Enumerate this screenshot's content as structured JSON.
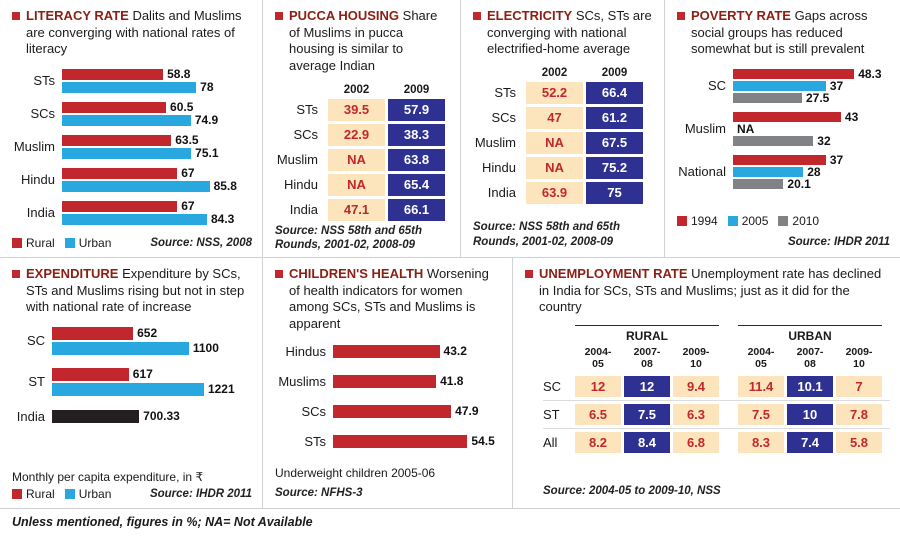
{
  "footer_note": "Unless mentioned, figures in %; NA= Not Available",
  "colors": {
    "red_series": "#c1272d",
    "blue_series": "#29a8df",
    "gray_series": "#808285",
    "black_series": "#231f20",
    "table_old_bg": "#fce4bc",
    "table_new_bg": "#2e3192",
    "title_maroon": "#8c1e12"
  },
  "chart_data": [
    {
      "id": "literacy",
      "type": "bar",
      "title": "LITERACY RATE",
      "subtitle": "Dalits and Muslims are converging with national rates of literacy",
      "xlim": [
        0,
        100
      ],
      "groups": [
        {
          "label": "STs",
          "bars": [
            {
              "series": "Rural",
              "value": 58.8,
              "color": "#c1272d"
            },
            {
              "series": "Urban",
              "value": 78,
              "color": "#29a8df"
            }
          ]
        },
        {
          "label": "SCs",
          "bars": [
            {
              "series": "Rural",
              "value": 60.5,
              "color": "#c1272d"
            },
            {
              "series": "Urban",
              "value": 74.9,
              "color": "#29a8df"
            }
          ]
        },
        {
          "label": "Muslim",
          "bars": [
            {
              "series": "Rural",
              "value": 63.5,
              "color": "#c1272d"
            },
            {
              "series": "Urban",
              "value": 75.1,
              "color": "#29a8df"
            }
          ]
        },
        {
          "label": "Hindu",
          "bars": [
            {
              "series": "Rural",
              "value": 67,
              "color": "#c1272d"
            },
            {
              "series": "Urban",
              "value": 85.8,
              "color": "#29a8df"
            }
          ]
        },
        {
          "label": "India",
          "bars": [
            {
              "series": "Rural",
              "value": 67,
              "color": "#c1272d"
            },
            {
              "series": "Urban",
              "value": 84.3,
              "color": "#29a8df"
            }
          ]
        }
      ],
      "legend": [
        {
          "label": "Rural",
          "color": "#c1272d"
        },
        {
          "label": "Urban",
          "color": "#29a8df"
        }
      ],
      "source": "Source: NSS, 2008"
    },
    {
      "id": "pucca",
      "type": "table",
      "title": "PUCCA HOUSING",
      "subtitle": "Share of Muslims in pucca housing is similar to average Indian",
      "columns": [
        "2002",
        "2009"
      ],
      "rows": [
        {
          "label": "STs",
          "values": [
            "39.5",
            "57.9"
          ]
        },
        {
          "label": "SCs",
          "values": [
            "22.9",
            "38.3"
          ]
        },
        {
          "label": "Muslim",
          "values": [
            "NA",
            "63.8"
          ]
        },
        {
          "label": "Hindu",
          "values": [
            "NA",
            "65.4"
          ]
        },
        {
          "label": "India",
          "values": [
            "47.1",
            "66.1"
          ]
        }
      ],
      "source": "Source: NSS 58th and 65th Rounds, 2001-02, 2008-09"
    },
    {
      "id": "electricity",
      "type": "table",
      "title": "ELECTRICITY",
      "subtitle": "SCs, STs are converging with national electrified-home average",
      "columns": [
        "2002",
        "2009"
      ],
      "rows": [
        {
          "label": "STs",
          "values": [
            "52.2",
            "66.4"
          ]
        },
        {
          "label": "SCs",
          "values": [
            "47",
            "61.2"
          ]
        },
        {
          "label": "Muslim",
          "values": [
            "NA",
            "67.5"
          ]
        },
        {
          "label": "Hindu",
          "values": [
            "NA",
            "75.2"
          ]
        },
        {
          "label": "India",
          "values": [
            "63.9",
            "75"
          ]
        }
      ],
      "source": "Source: NSS 58th and 65th Rounds, 2001-02, 2008-09"
    },
    {
      "id": "poverty",
      "type": "bar",
      "title": "POVERTY RATE",
      "subtitle": "Gaps across social groups has reduced somewhat but is still prevalent",
      "xlim": [
        0,
        55
      ],
      "groups": [
        {
          "label": "SC",
          "bars": [
            {
              "series": "1994",
              "value": 48.3,
              "color": "#c1272d"
            },
            {
              "series": "2005",
              "value": 37,
              "color": "#29a8df"
            },
            {
              "series": "2010",
              "value": 27.5,
              "color": "#808285"
            }
          ]
        },
        {
          "label": "Muslim",
          "bars": [
            {
              "series": "1994",
              "value": 43,
              "color": "#c1272d"
            },
            {
              "series": "2005",
              "value": null,
              "display": "NA",
              "color": "#29a8df"
            },
            {
              "series": "2010",
              "value": 32,
              "color": "#808285"
            }
          ]
        },
        {
          "label": "National",
          "bars": [
            {
              "series": "1994",
              "value": 37,
              "color": "#c1272d"
            },
            {
              "series": "2005",
              "value": 28,
              "color": "#29a8df"
            },
            {
              "series": "2010",
              "value": 20.1,
              "color": "#808285"
            }
          ]
        }
      ],
      "legend": [
        {
          "label": "1994",
          "color": "#c1272d"
        },
        {
          "label": "2005",
          "color": "#29a8df"
        },
        {
          "label": "2010",
          "color": "#808285"
        }
      ],
      "source": "Source: IHDR 2011"
    },
    {
      "id": "expenditure",
      "type": "bar",
      "title": "EXPENDITURE",
      "subtitle": "Expenditure by SCs, STs and Muslims rising but not in step with national rate of increase",
      "xlim": [
        0,
        1350
      ],
      "groups": [
        {
          "label": "SC",
          "bars": [
            {
              "series": "Rural",
              "value": 652,
              "color": "#c1272d"
            },
            {
              "series": "Urban",
              "value": 1100,
              "color": "#29a8df"
            }
          ]
        },
        {
          "label": "ST",
          "bars": [
            {
              "series": "Rural",
              "value": 617,
              "color": "#c1272d"
            },
            {
              "series": "Urban",
              "value": 1221,
              "color": "#29a8df"
            }
          ]
        },
        {
          "label": "India",
          "bars": [
            {
              "series": "India",
              "value": 700.33,
              "color": "#231f20"
            }
          ]
        }
      ],
      "legend": [
        {
          "label": "Rural",
          "color": "#c1272d"
        },
        {
          "label": "Urban",
          "color": "#29a8df"
        }
      ],
      "note": "Monthly per capita expenditure, in ₹",
      "source": "Source: IHDR 2011"
    },
    {
      "id": "children",
      "type": "bar",
      "title": "CHILDREN'S HEALTH",
      "subtitle": "Worsening of health indicators for women among SCs, STs and Muslims is apparent",
      "xlim": [
        0,
        60
      ],
      "groups": [
        {
          "label": "Hindus",
          "bars": [
            {
              "series": "Underweight",
              "value": 43.2,
              "color": "#c1272d"
            }
          ]
        },
        {
          "label": "Muslims",
          "bars": [
            {
              "series": "Underweight",
              "value": 41.8,
              "color": "#c1272d"
            }
          ]
        },
        {
          "label": "SCs",
          "bars": [
            {
              "series": "Underweight",
              "value": 47.9,
              "color": "#c1272d"
            }
          ]
        },
        {
          "label": "STs",
          "bars": [
            {
              "series": "Underweight",
              "value": 54.5,
              "color": "#c1272d"
            }
          ]
        }
      ],
      "note": "Underweight children 2005-06",
      "source": "Source: NFHS-3"
    },
    {
      "id": "unemployment",
      "type": "table",
      "title": "UNEMPLOYMENT RATE",
      "subtitle": "Unemployment rate has declined in India for SCs, STs and Muslims; just as it did for the country",
      "sections": [
        {
          "name": "RURAL",
          "columns": [
            "2004-05",
            "2007-08",
            "2009-10"
          ]
        },
        {
          "name": "URBAN",
          "columns": [
            "2004-05",
            "2007-08",
            "2009-10"
          ]
        }
      ],
      "rows": [
        {
          "label": "SC",
          "values": [
            [
              "12",
              "12",
              "9.4"
            ],
            [
              "11.4",
              "10.1",
              "7"
            ]
          ]
        },
        {
          "label": "ST",
          "values": [
            [
              "6.5",
              "7.5",
              "6.3"
            ],
            [
              "7.5",
              "10",
              "7.8"
            ]
          ]
        },
        {
          "label": "All",
          "values": [
            [
              "8.2",
              "8.4",
              "6.8"
            ],
            [
              "8.3",
              "7.4",
              "5.8"
            ]
          ]
        }
      ],
      "source": "Source: 2004-05 to 2009-10, NSS"
    }
  ]
}
